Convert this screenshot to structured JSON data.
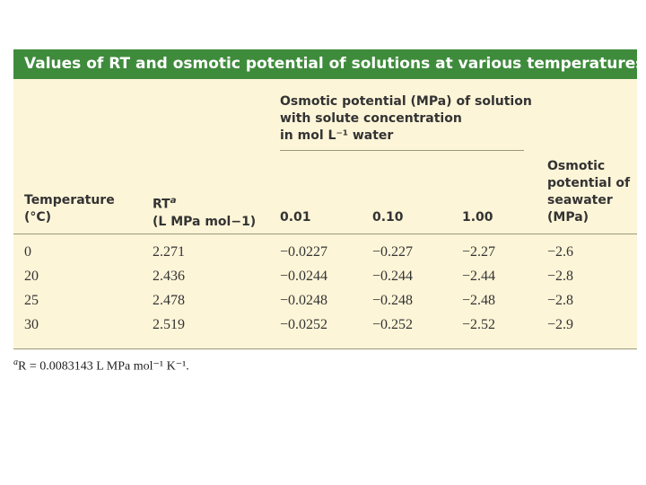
{
  "title": "Values of RT and osmotic potential of solutions at various temperatures",
  "group_header": {
    "lines": [
      "Osmotic potential (MPa) of solution",
      "with solute concentration",
      "in mol L⁻¹ water"
    ]
  },
  "columns": [
    {
      "lines": [
        "Temperature",
        "(°C)"
      ]
    },
    {
      "lines": [
        "RT",
        "(L MPa mol−1)"
      ],
      "note": "a"
    },
    {
      "lines": [
        "0.01"
      ]
    },
    {
      "lines": [
        "0.10"
      ]
    },
    {
      "lines": [
        "1.00"
      ]
    },
    {
      "lines": [
        "Osmotic",
        "potential of",
        "seawater",
        "(MPa)"
      ]
    }
  ],
  "rows": [
    [
      "0",
      "2.271",
      "−0.0227",
      "−0.227",
      "−2.27",
      "−2.6"
    ],
    [
      "20",
      "2.436",
      "−0.0244",
      "−0.244",
      "−2.44",
      "−2.8"
    ],
    [
      "25",
      "2.478",
      "−0.0248",
      "−0.248",
      "−2.48",
      "−2.8"
    ],
    [
      "30",
      "2.519",
      "−0.0252",
      "−0.252",
      "−2.52",
      "−2.9"
    ]
  ],
  "footnote": {
    "marker": "a",
    "text": "R = 0.0083143 L MPa mol⁻¹ K⁻¹."
  }
}
